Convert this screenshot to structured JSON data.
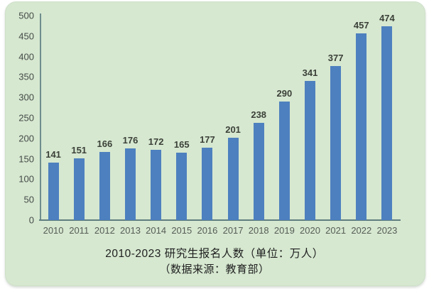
{
  "chart_data": {
    "type": "bar",
    "categories": [
      "2010",
      "2011",
      "2012",
      "2013",
      "2014",
      "2015",
      "2016",
      "2017",
      "2018",
      "2019",
      "2020",
      "2021",
      "2022",
      "2023"
    ],
    "values": [
      141,
      151,
      166,
      176,
      172,
      165,
      177,
      201,
      238,
      290,
      341,
      377,
      457,
      474
    ],
    "title": "2010-2023 研究生报名人数（单位：万人）",
    "subtitle": "（数据来源：教育部）",
    "xlabel": "",
    "ylabel": "",
    "ylim": [
      0,
      500
    ],
    "ytick_step": 50,
    "grid": false,
    "legend": "none",
    "data_labels": true
  },
  "colors": {
    "card_background": "#d6e8d0",
    "bar_fill": "#4d80bf",
    "axis_line": "#6f8d8d",
    "tick_text": "#454b48",
    "category_text": "#565c56",
    "value_label_text": "#3b4038",
    "title_text": "#1e1e1e",
    "page_background": "#ffffff"
  }
}
